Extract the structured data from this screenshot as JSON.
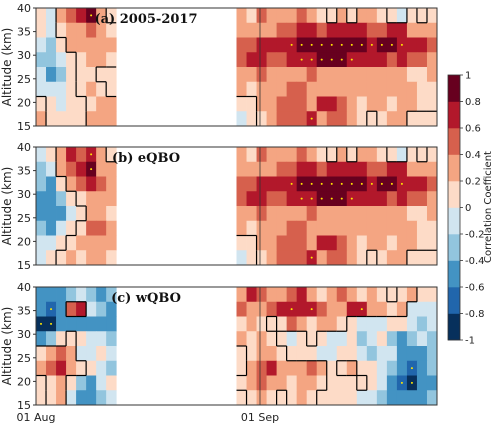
{
  "colors": {
    "scale": [
      "#07305c",
      "#2166ac",
      "#4393c3",
      "#92c5de",
      "#d1e5f0",
      "#fddbc7",
      "#f4a582",
      "#d6604d",
      "#b2182b",
      "#67001f"
    ],
    "contour": "#000000",
    "stipple": "#ffe600",
    "gap": "#ffffff"
  },
  "colorbar": {
    "label": "Correlation Coefficient",
    "ticks": [
      "1",
      "0.8",
      "0.6",
      "0.4",
      "0.2",
      "0",
      "-0.2",
      "-0.4",
      "-0.6",
      "-0.8",
      "-1"
    ]
  },
  "chart_data": [
    {
      "type": "heatmap",
      "title": "(a) 2005-2017",
      "ylabel": "Altitude (km)",
      "ylim": [
        15,
        40
      ],
      "yticks": [
        "40",
        "35",
        "30",
        "25",
        "20",
        "15"
      ],
      "xticks": [],
      "values": [
        [
          0.1,
          -0.1,
          0.3,
          0.5,
          0.6,
          0.9,
          0.3,
          0.1,
          0.0,
          0.0,
          0.0,
          0.0,
          0.0,
          0.0,
          0.0,
          0.0,
          0.0,
          0.0,
          0.0,
          0.0,
          0.3,
          0.2,
          0.5,
          0.4,
          0.3,
          0.4,
          0.5,
          0.3,
          0.2,
          0.1,
          0.3,
          0.1,
          0.4,
          0.4,
          0.2,
          0.1,
          -0.1,
          0.2,
          0.1,
          0.2
        ],
        [
          0.0,
          -0.2,
          0.2,
          0.4,
          0.3,
          0.5,
          0.3,
          0.2,
          0.0,
          0.0,
          0.0,
          0.0,
          0.0,
          0.0,
          0.0,
          0.0,
          0.0,
          0.0,
          0.0,
          0.0,
          0.4,
          0.3,
          0.4,
          0.4,
          0.5,
          0.5,
          0.6,
          0.6,
          0.5,
          0.6,
          0.6,
          0.6,
          0.6,
          0.5,
          0.5,
          0.6,
          0.6,
          0.4,
          0.3,
          0.3
        ],
        [
          -0.2,
          -0.3,
          0.1,
          0.3,
          0.4,
          0.4,
          0.3,
          0.3,
          0.0,
          0.0,
          0.0,
          0.0,
          0.0,
          0.0,
          0.0,
          0.0,
          0.0,
          0.0,
          0.0,
          0.0,
          0.5,
          0.5,
          0.6,
          0.6,
          0.6,
          0.7,
          0.8,
          0.9,
          0.9,
          0.8,
          0.9,
          0.8,
          0.8,
          0.7,
          0.8,
          0.8,
          0.7,
          0.6,
          0.6,
          0.5
        ],
        [
          -0.3,
          -0.3,
          -0.1,
          0.1,
          0.2,
          0.3,
          0.4,
          0.2,
          0.0,
          0.0,
          0.0,
          0.0,
          0.0,
          0.0,
          0.0,
          0.0,
          0.0,
          0.0,
          0.0,
          0.0,
          0.5,
          0.6,
          0.6,
          0.5,
          0.5,
          0.6,
          0.7,
          0.7,
          0.8,
          0.8,
          0.8,
          0.7,
          0.6,
          0.6,
          0.6,
          0.5,
          0.6,
          0.5,
          0.5,
          0.4
        ],
        [
          -0.2,
          -0.4,
          -0.3,
          0.0,
          0.2,
          0.2,
          0.1,
          0.1,
          0.0,
          0.0,
          0.0,
          0.0,
          0.0,
          0.0,
          0.0,
          0.0,
          0.0,
          0.0,
          0.0,
          0.0,
          0.4,
          0.4,
          0.5,
          0.4,
          0.3,
          0.3,
          0.4,
          0.5,
          0.3,
          0.3,
          0.4,
          0.3,
          0.4,
          0.3,
          0.3,
          0.3,
          0.4,
          0.2,
          0.2,
          0.3
        ],
        [
          -0.1,
          -0.2,
          -0.2,
          0.1,
          0.2,
          0.3,
          0.2,
          0.1,
          0.0,
          0.0,
          0.0,
          0.0,
          0.0,
          0.0,
          0.0,
          0.0,
          0.0,
          0.0,
          0.0,
          0.0,
          0.3,
          0.2,
          0.3,
          0.3,
          0.4,
          0.5,
          0.5,
          0.3,
          0.3,
          0.4,
          0.4,
          0.3,
          0.3,
          0.3,
          0.3,
          0.4,
          0.3,
          0.3,
          0.2,
          0.2
        ],
        [
          0.2,
          0.1,
          -0.1,
          0.0,
          0.1,
          0.2,
          0.3,
          0.3,
          0.0,
          0.0,
          0.0,
          0.0,
          0.0,
          0.0,
          0.0,
          0.0,
          0.0,
          0.0,
          0.0,
          0.0,
          0.1,
          0.1,
          0.3,
          0.3,
          0.5,
          0.5,
          0.5,
          0.4,
          0.6,
          0.6,
          0.5,
          0.4,
          0.2,
          0.3,
          0.3,
          0.2,
          0.3,
          0.3,
          0.2,
          0.2
        ],
        [
          0.3,
          0.1,
          0.0,
          0.0,
          0.1,
          0.3,
          0.3,
          0.3,
          0.0,
          0.0,
          0.0,
          0.0,
          0.0,
          0.0,
          0.0,
          0.0,
          0.0,
          0.0,
          0.0,
          0.0,
          -0.2,
          0.0,
          0.2,
          0.4,
          0.5,
          0.5,
          0.5,
          0.7,
          0.4,
          0.5,
          0.5,
          0.4,
          0.2,
          0.0,
          0.2,
          0.3,
          0.4,
          0.1,
          0.1,
          0.1
        ]
      ]
    },
    {
      "type": "heatmap",
      "title": "(b) eQBO",
      "ylabel": "Altitude (km)",
      "ylim": [
        15,
        40
      ],
      "yticks": [
        "40",
        "35",
        "30",
        "25",
        "20",
        "15"
      ],
      "xticks": [],
      "values": [
        [
          -0.1,
          0.1,
          0.4,
          0.6,
          0.5,
          0.7,
          0.3,
          0.1,
          0.0,
          0.0,
          0.0,
          0.0,
          0.0,
          0.0,
          0.0,
          0.0,
          0.0,
          0.0,
          0.0,
          0.0,
          0.3,
          0.2,
          0.5,
          0.4,
          0.3,
          0.4,
          0.5,
          0.3,
          0.2,
          0.1,
          0.3,
          0.1,
          0.4,
          0.4,
          0.2,
          0.1,
          -0.1,
          0.2,
          0.1,
          0.2
        ],
        [
          -0.3,
          -0.1,
          0.3,
          0.5,
          0.6,
          0.8,
          0.4,
          0.3,
          0.0,
          0.0,
          0.0,
          0.0,
          0.0,
          0.0,
          0.0,
          0.0,
          0.0,
          0.0,
          0.0,
          0.0,
          0.4,
          0.3,
          0.4,
          0.4,
          0.5,
          0.5,
          0.6,
          0.6,
          0.5,
          0.6,
          0.6,
          0.6,
          0.6,
          0.5,
          0.5,
          0.6,
          0.6,
          0.4,
          0.3,
          0.3
        ],
        [
          -0.3,
          -0.4,
          0.0,
          0.3,
          0.5,
          0.6,
          0.5,
          0.4,
          0.0,
          0.0,
          0.0,
          0.0,
          0.0,
          0.0,
          0.0,
          0.0,
          0.0,
          0.0,
          0.0,
          0.0,
          0.5,
          0.5,
          0.6,
          0.6,
          0.6,
          0.7,
          0.8,
          0.9,
          0.9,
          0.8,
          0.9,
          0.8,
          0.8,
          0.7,
          0.8,
          0.8,
          0.7,
          0.6,
          0.6,
          0.5
        ],
        [
          -0.4,
          -0.5,
          -0.3,
          0.0,
          0.2,
          0.4,
          0.4,
          0.3,
          0.0,
          0.0,
          0.0,
          0.0,
          0.0,
          0.0,
          0.0,
          0.0,
          0.0,
          0.0,
          0.0,
          0.0,
          0.5,
          0.6,
          0.6,
          0.5,
          0.5,
          0.6,
          0.7,
          0.7,
          0.8,
          0.8,
          0.8,
          0.7,
          0.6,
          0.6,
          0.6,
          0.5,
          0.6,
          0.5,
          0.5,
          0.4
        ],
        [
          -0.5,
          -0.6,
          -0.4,
          -0.1,
          0.1,
          0.3,
          0.4,
          0.2,
          0.0,
          0.0,
          0.0,
          0.0,
          0.0,
          0.0,
          0.0,
          0.0,
          0.0,
          0.0,
          0.0,
          0.0,
          0.4,
          0.4,
          0.5,
          0.4,
          0.3,
          0.3,
          0.4,
          0.5,
          0.3,
          0.3,
          0.4,
          0.3,
          0.4,
          0.3,
          0.3,
          0.3,
          0.4,
          0.2,
          0.2,
          0.3
        ],
        [
          -0.3,
          -0.4,
          -0.2,
          0.0,
          0.2,
          0.5,
          0.5,
          0.3,
          0.0,
          0.0,
          0.0,
          0.0,
          0.0,
          0.0,
          0.0,
          0.0,
          0.0,
          0.0,
          0.0,
          0.0,
          0.3,
          0.2,
          0.3,
          0.3,
          0.4,
          0.5,
          0.5,
          0.3,
          0.3,
          0.4,
          0.4,
          0.3,
          0.3,
          0.3,
          0.3,
          0.4,
          0.3,
          0.3,
          0.2,
          0.2
        ],
        [
          -0.2,
          -0.1,
          0.1,
          0.2,
          0.3,
          0.4,
          0.4,
          0.3,
          0.0,
          0.0,
          0.0,
          0.0,
          0.0,
          0.0,
          0.0,
          0.0,
          0.0,
          0.0,
          0.0,
          0.0,
          0.1,
          0.1,
          0.3,
          0.3,
          0.5,
          0.5,
          0.5,
          0.4,
          0.6,
          0.6,
          0.5,
          0.4,
          0.2,
          0.3,
          0.3,
          0.2,
          0.3,
          0.3,
          0.2,
          0.2
        ],
        [
          -0.1,
          0.0,
          0.2,
          0.3,
          0.2,
          0.3,
          0.3,
          0.2,
          0.0,
          0.0,
          0.0,
          0.0,
          0.0,
          0.0,
          0.0,
          0.0,
          0.0,
          0.0,
          0.0,
          0.0,
          -0.2,
          0.0,
          0.2,
          0.4,
          0.5,
          0.5,
          0.5,
          0.7,
          0.4,
          0.5,
          0.5,
          0.4,
          0.2,
          0.0,
          0.2,
          0.3,
          0.4,
          0.1,
          0.1,
          0.1
        ]
      ]
    },
    {
      "type": "heatmap",
      "title": "(c) wQBO",
      "ylabel": "Altitude (km)",
      "ylim": [
        15,
        40
      ],
      "yticks": [
        "40",
        "35",
        "30",
        "25",
        "20",
        "15"
      ],
      "xticks": [
        "01 Aug",
        "01 Sep"
      ],
      "values": [
        [
          -0.4,
          -0.5,
          -0.4,
          -0.3,
          -0.2,
          -0.3,
          -0.4,
          -0.3,
          0.0,
          0.0,
          0.0,
          0.0,
          0.0,
          0.0,
          0.0,
          0.0,
          0.0,
          0.0,
          0.0,
          0.0,
          0.4,
          0.6,
          0.5,
          0.3,
          0.4,
          0.5,
          0.6,
          0.3,
          0.2,
          0.4,
          0.5,
          0.3,
          0.2,
          0.3,
          0.2,
          0.1,
          0.2,
          0.3,
          0.1,
          0.0
        ],
        [
          -0.6,
          -0.7,
          -0.5,
          0.5,
          0.6,
          -0.2,
          -0.3,
          -0.4,
          0.0,
          0.0,
          0.0,
          0.0,
          0.0,
          0.0,
          0.0,
          0.0,
          0.0,
          0.0,
          0.0,
          0.0,
          0.5,
          0.3,
          0.4,
          0.5,
          0.6,
          0.7,
          0.6,
          0.7,
          0.5,
          0.3,
          0.4,
          0.6,
          0.7,
          0.4,
          0.3,
          0.2,
          0.3,
          -0.1,
          -0.2,
          -0.1
        ],
        [
          -0.8,
          -0.9,
          -0.6,
          -0.5,
          -0.4,
          -0.5,
          -0.6,
          -0.5,
          0.0,
          0.0,
          0.0,
          0.0,
          0.0,
          0.0,
          0.0,
          0.0,
          0.0,
          0.0,
          0.0,
          0.0,
          0.2,
          0.3,
          0.2,
          0.1,
          0.2,
          0.5,
          0.3,
          0.2,
          0.4,
          0.3,
          0.2,
          0.1,
          -0.1,
          -0.2,
          -0.1,
          0.0,
          0.1,
          -0.2,
          -0.3,
          -0.2
        ],
        [
          -0.4,
          -0.3,
          0.1,
          0.2,
          0.1,
          -0.1,
          -0.2,
          -0.3,
          0.0,
          0.0,
          0.0,
          0.0,
          0.0,
          0.0,
          0.0,
          0.0,
          0.0,
          0.0,
          0.0,
          0.0,
          0.3,
          0.2,
          0.4,
          0.2,
          0.0,
          -0.1,
          0.1,
          0.2,
          0.1,
          -0.2,
          -0.1,
          0.0,
          -0.3,
          -0.2,
          0.0,
          -0.3,
          -0.4,
          -0.3,
          -0.2,
          -0.3
        ],
        [
          0.2,
          0.4,
          0.5,
          0.3,
          -0.1,
          -0.2,
          0.0,
          -0.1,
          0.0,
          0.0,
          0.0,
          0.0,
          0.0,
          0.0,
          0.0,
          0.0,
          0.0,
          0.0,
          0.0,
          0.0,
          0.1,
          0.2,
          0.4,
          0.3,
          0.2,
          0.0,
          0.1,
          0.0,
          -0.2,
          -0.1,
          0.0,
          0.1,
          -0.2,
          -0.3,
          -0.1,
          -0.2,
          -0.5,
          -0.6,
          -0.4,
          -0.3
        ],
        [
          0.3,
          0.5,
          0.6,
          0.4,
          0.2,
          0.0,
          -0.2,
          -0.3,
          0.0,
          0.0,
          0.0,
          0.0,
          0.0,
          0.0,
          0.0,
          0.0,
          0.0,
          0.0,
          0.0,
          0.0,
          0.1,
          0.4,
          0.5,
          0.6,
          0.4,
          0.3,
          0.4,
          0.5,
          0.3,
          0.1,
          0.2,
          0.3,
          0.1,
          0.0,
          -0.2,
          -0.3,
          -0.6,
          -0.7,
          -0.5,
          -0.3
        ],
        [
          0.1,
          0.2,
          0.3,
          0.0,
          -0.3,
          -0.4,
          -0.2,
          0.0,
          0.0,
          0.0,
          0.0,
          0.0,
          0.0,
          0.0,
          0.0,
          0.0,
          0.0,
          0.0,
          0.0,
          0.0,
          0.2,
          0.3,
          0.5,
          0.4,
          0.3,
          0.2,
          0.3,
          0.4,
          0.2,
          0.1,
          0.0,
          0.1,
          0.2,
          0.0,
          -0.2,
          -0.4,
          -0.7,
          -0.9,
          -0.6,
          -0.4
        ],
        [
          0.0,
          0.2,
          0.3,
          -0.2,
          -0.5,
          -0.6,
          -0.3,
          -0.1,
          0.0,
          0.0,
          0.0,
          0.0,
          0.0,
          0.0,
          0.0,
          0.0,
          0.0,
          0.0,
          0.0,
          0.0,
          0.1,
          0.2,
          0.3,
          0.2,
          0.1,
          0.2,
          0.3,
          0.2,
          0.1,
          0.0,
          0.1,
          0.0,
          -0.1,
          -0.2,
          -0.3,
          -0.4,
          -0.5,
          -0.6,
          -0.4,
          -0.3
        ]
      ]
    }
  ]
}
